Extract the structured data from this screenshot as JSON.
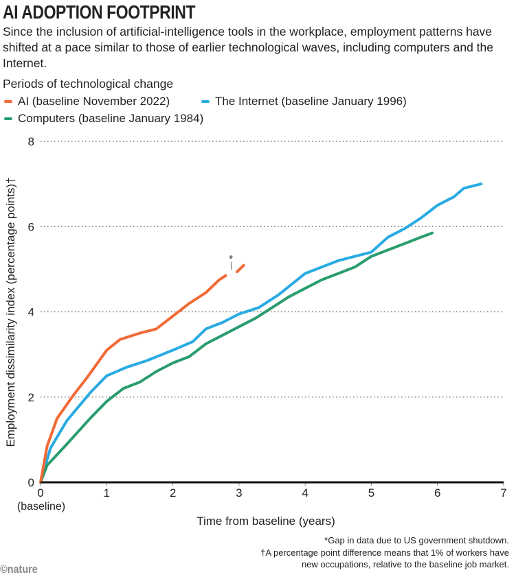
{
  "title": "AI ADOPTION FOOTPRINT",
  "subtitle": "Since the inclusion of artificial-intelligence tools in the workplace, employment patterns have shifted at a pace similar to those of earlier technological waves, including computers and the Internet.",
  "logo": "©nature",
  "footnotes": [
    "*Gap in data due to US government shutdown.",
    "†A percentage point difference means that 1% of workers have",
    "new occupations, relative to the baseline job market."
  ],
  "chart_data": {
    "type": "line",
    "legend_title": "Periods of technological change",
    "legend_placement": "top-left",
    "xlabel": "Time from baseline (years)",
    "ylabel": "Employment dissimilarity index (percentage points)†",
    "xlim": [
      0,
      7
    ],
    "ylim": [
      0,
      8
    ],
    "xticks": [
      "0",
      "1",
      "2",
      "3",
      "4",
      "5",
      "6",
      "7"
    ],
    "xtick_note": "(baseline)",
    "yticks": [
      "0",
      "2",
      "4",
      "6",
      "8"
    ],
    "grid": "horizontal dotted",
    "annotation": "*",
    "series": [
      {
        "name": "AI (baseline November 2022)",
        "color": "#f26a36",
        "segments": [
          {
            "x": [
              0,
              0.1,
              0.25,
              0.5,
              0.7,
              1.0,
              1.2,
              1.5,
              1.75,
              2.0,
              2.25,
              2.5,
              2.7,
              2.8
            ],
            "y": [
              0,
              0.85,
              1.5,
              2.05,
              2.45,
              3.1,
              3.35,
              3.5,
              3.6,
              3.9,
              4.2,
              4.45,
              4.75,
              4.85
            ]
          },
          {
            "x": [
              2.97,
              3.07
            ],
            "y": [
              4.94,
              5.09
            ]
          }
        ]
      },
      {
        "name": "The Internet (baseline January 1996)",
        "color": "#29abe2",
        "segments": [
          {
            "x": [
              0,
              0.15,
              0.4,
              0.75,
              1.0,
              1.3,
              1.6,
              2.0,
              2.3,
              2.5,
              2.75,
              3.0,
              3.3,
              3.6,
              4.0,
              4.25,
              4.5,
              4.75,
              5.0,
              5.25,
              5.5,
              5.75,
              6.0,
              6.25,
              6.4,
              6.66
            ],
            "y": [
              0,
              0.8,
              1.45,
              2.1,
              2.5,
              2.7,
              2.85,
              3.1,
              3.3,
              3.6,
              3.75,
              3.95,
              4.1,
              4.4,
              4.9,
              5.05,
              5.2,
              5.3,
              5.4,
              5.75,
              5.95,
              6.2,
              6.5,
              6.7,
              6.9,
              7.0
            ]
          }
        ]
      },
      {
        "name": "Computers (baseline January 1984)",
        "color": "#2a9d6e",
        "segments": [
          {
            "x": [
              0,
              0.1,
              0.4,
              0.75,
              1.0,
              1.25,
              1.5,
              1.75,
              2.0,
              2.25,
              2.5,
              2.75,
              3.0,
              3.25,
              3.5,
              3.75,
              4.0,
              4.25,
              4.5,
              4.75,
              5.0,
              5.25,
              5.5,
              5.75,
              5.92
            ],
            "y": [
              0,
              0.4,
              0.9,
              1.5,
              1.9,
              2.2,
              2.35,
              2.6,
              2.8,
              2.95,
              3.25,
              3.45,
              3.65,
              3.85,
              4.1,
              4.35,
              4.55,
              4.75,
              4.9,
              5.05,
              5.3,
              5.45,
              5.6,
              5.75,
              5.85
            ]
          }
        ]
      }
    ]
  }
}
